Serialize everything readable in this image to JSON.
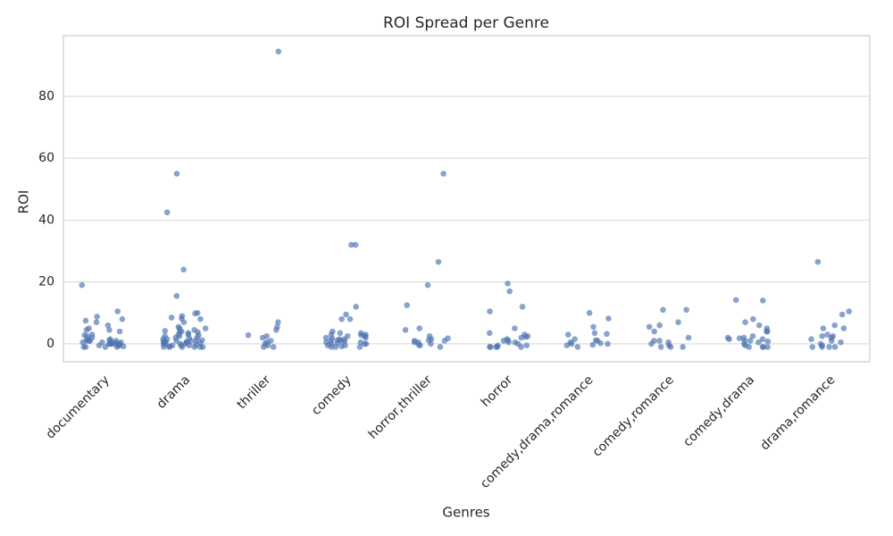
{
  "chart_data": {
    "type": "strip",
    "title": "ROI Spread per Genre",
    "x_label": "Genres",
    "y_label": "ROI",
    "color": "#4c72b0",
    "grid": true,
    "categories": [
      "documentary",
      "drama",
      "thriller",
      "comedy",
      "horror,thriller",
      "horror",
      "comedy,drama,romance",
      "comedy,romance",
      "comedy,drama",
      "drama,romance"
    ],
    "values": [
      [
        19,
        10.5,
        7.5,
        6,
        5,
        4.5,
        4,
        3,
        2.5,
        2,
        1.5,
        1,
        1,
        0.5,
        0.5,
        0,
        0,
        0,
        -0.5,
        -0.5,
        -1,
        -1,
        -1,
        8.8,
        8,
        7,
        4.5,
        2.8,
        1.5,
        1,
        0.5,
        0,
        -0.5,
        -1,
        1,
        0.5,
        0,
        0.3,
        -0.8,
        1.2
      ],
      [
        55,
        42.5,
        24,
        15.5,
        9,
        8.5,
        8,
        10,
        9.8,
        8.2,
        7,
        5.5,
        5,
        4.5,
        4,
        4,
        3.5,
        3,
        3,
        2.5,
        2.5,
        2,
        2,
        1.5,
        1.5,
        1,
        1,
        1,
        0.5,
        0.5,
        0.5,
        0,
        0,
        0,
        0,
        -0.5,
        -0.5,
        -0.5,
        -1,
        -1,
        -1,
        -1,
        -1,
        -1,
        1.2,
        0.8,
        0.3,
        -0.2,
        5,
        4.2,
        3.8,
        2.8,
        1.8,
        0.6,
        -0.8
      ],
      [
        94.5,
        7,
        5.5,
        4.5,
        2.8,
        2.5,
        2,
        1,
        0.5,
        0,
        -0.5,
        -1,
        -1
      ],
      [
        32,
        32,
        12,
        9.5,
        8,
        8,
        4,
        3.5,
        3.5,
        3,
        3,
        2.5,
        2.5,
        2,
        2,
        1.5,
        1.5,
        1,
        1,
        0.5,
        0.5,
        0,
        0,
        0,
        -0.5,
        -0.5,
        -1,
        -1,
        -1,
        2.8,
        1.2,
        0.2,
        -0.8,
        0.8,
        1.8
      ],
      [
        55,
        26.5,
        19,
        12.5,
        5,
        4.5,
        2.5,
        1.8,
        1.5,
        1.2,
        1,
        0.5,
        0,
        -0.5,
        -1,
        1,
        0.5,
        -0.3
      ],
      [
        19.5,
        17,
        12,
        10.5,
        5,
        3.5,
        3,
        2.5,
        2,
        1.5,
        1,
        0.5,
        0,
        -0.5,
        -1,
        -1,
        -1,
        -1,
        -1,
        0.5,
        1.2,
        2.2,
        -0.5
      ],
      [
        10,
        8.2,
        5.5,
        3.5,
        3.2,
        3,
        1.5,
        1.2,
        1,
        0.5,
        0,
        -0.5,
        -1,
        0,
        0.2,
        -0.3
      ],
      [
        11,
        11,
        7,
        6,
        5.5,
        4,
        2,
        1,
        1,
        0.5,
        0,
        -0.5,
        -1,
        -1,
        -1
      ],
      [
        14.2,
        14,
        8,
        7,
        6,
        5,
        4,
        4,
        2.5,
        2,
        2,
        1.5,
        1.5,
        1,
        1,
        0.5,
        0,
        -0.5,
        -1,
        -1,
        -1,
        -1,
        0.8,
        1.8
      ],
      [
        26.5,
        10.5,
        9.5,
        6,
        5,
        5,
        3,
        2.5,
        2.5,
        2,
        1.5,
        1,
        0.5,
        0,
        -0.5,
        -1,
        -1,
        -1,
        -1
      ]
    ],
    "ylim": [
      -5.8,
      99.6
    ],
    "yticks": [
      0,
      20,
      40,
      60,
      80
    ]
  }
}
